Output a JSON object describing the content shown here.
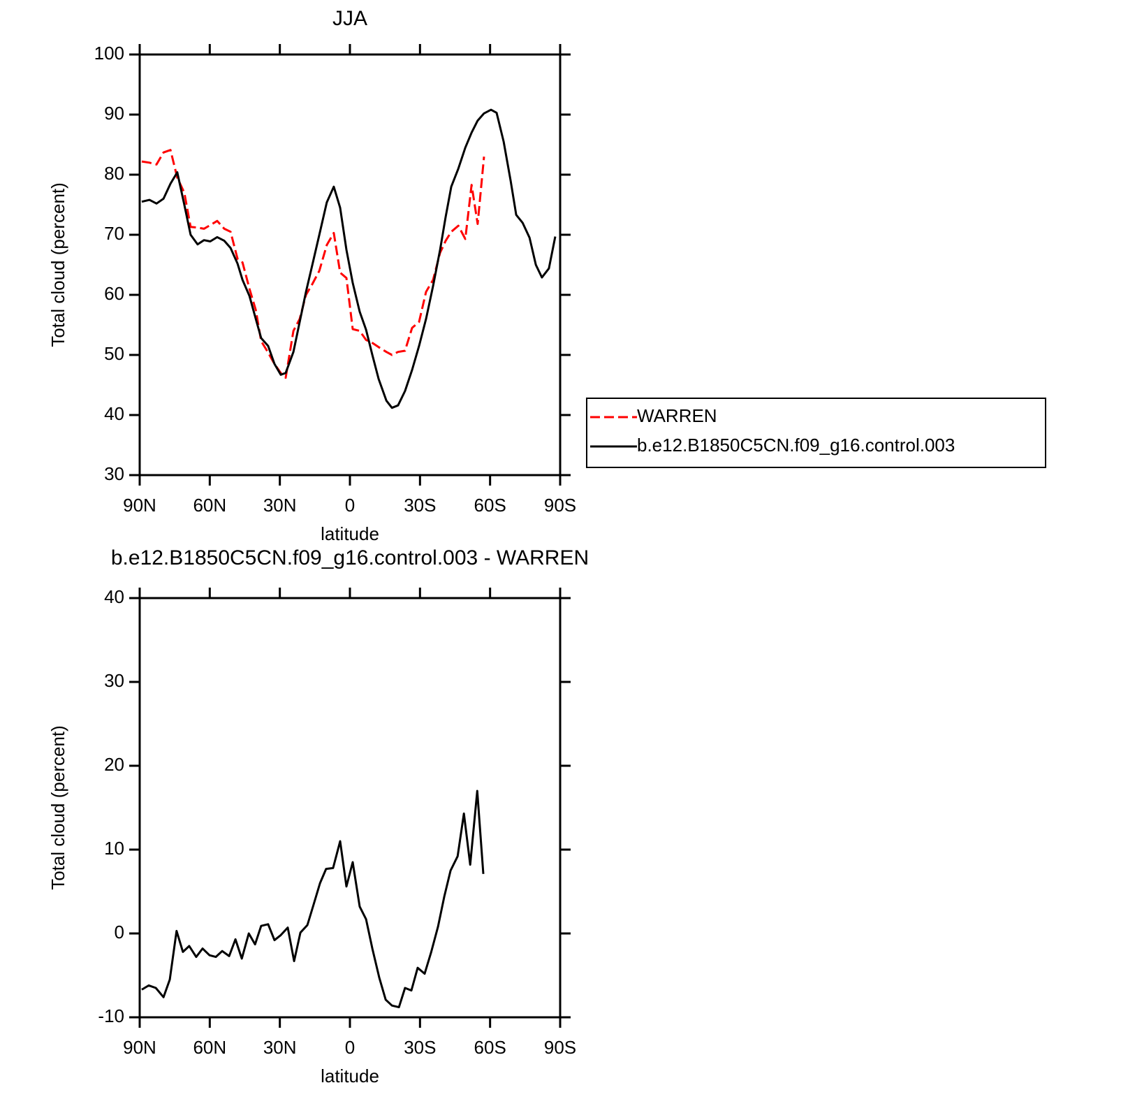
{
  "chart_data": [
    {
      "type": "line",
      "title": "JJA",
      "xlabel": "latitude",
      "ylabel": "Total cloud (percent)",
      "xlim": [
        90,
        -90
      ],
      "ylim": [
        30,
        100
      ],
      "xticks": [
        {
          "value": 90,
          "label": "90N"
        },
        {
          "value": 60,
          "label": "60N"
        },
        {
          "value": 30,
          "label": "30N"
        },
        0,
        {
          "value": -30,
          "label": "30S"
        },
        {
          "value": -60,
          "label": "60S"
        },
        {
          "value": -90,
          "label": "90S"
        }
      ],
      "yticks": [
        30,
        40,
        50,
        60,
        70,
        80,
        90,
        100
      ],
      "legend": "right",
      "x": [
        89.1,
        85.8,
        82.8,
        79.8,
        76.8,
        73.9,
        70.9,
        68.2,
        65.2,
        62.5,
        59.8,
        56.8,
        53.8,
        51.1,
        48.1,
        46.0,
        43.0,
        40.3,
        38.0,
        35.0,
        32.3,
        29.6,
        27.5,
        24.2,
        21.5,
        18.8,
        16.1,
        13.1,
        9.9,
        6.9,
        4.2,
        1.5,
        -1.2,
        -4.2,
        -6.9,
        -9.6,
        -12.3,
        -15.6,
        -18.0,
        -20.6,
        -23.6,
        -26.6,
        -29.6,
        -32.6,
        -35.6,
        -38.6,
        -41.0,
        -43.4,
        -46.4,
        -49.4,
        -52.1,
        -54.7,
        -57.4,
        -60.4,
        -62.8,
        -65.8,
        -68.8,
        -71.2,
        -73.9,
        -76.9,
        -79.6,
        -82.2,
        -85.2,
        -87.9
      ],
      "series": [
        {
          "name": "WARREN",
          "color": "#ff0000",
          "style": "dashed",
          "values": [
            82.2,
            82,
            81.7,
            83.7,
            84.1,
            79.5,
            77,
            71.3,
            71.2,
            71,
            71.6,
            72.3,
            71,
            70.5,
            66,
            65.4,
            61,
            57.5,
            52.3,
            50.4,
            48.5,
            47,
            46.2,
            54,
            56,
            60,
            61.8,
            64,
            68.3,
            70.3,
            63.7,
            62.8,
            54.3,
            54,
            52.5,
            52,
            51.3,
            50.5,
            50,
            50.5,
            50.7,
            54.5,
            55.5,
            60.5,
            62.5,
            67,
            69,
            70.5,
            71.5,
            69.3,
            78.3,
            71.8,
            83,
            null,
            null,
            null,
            null,
            null,
            null,
            null,
            null,
            null,
            null,
            null
          ]
        },
        {
          "name": "b.e12.B1850C5CN.f09_g16.control.003",
          "color": "#000000",
          "style": "solid",
          "values": [
            75.5,
            75.8,
            75.2,
            76,
            78.5,
            80.4,
            75,
            70,
            68.4,
            69.1,
            68.9,
            69.6,
            69,
            67.8,
            65.2,
            62.5,
            59.8,
            56,
            52.8,
            51.5,
            48.5,
            46.7,
            47,
            50.5,
            55.5,
            60.5,
            65,
            70,
            75.4,
            78,
            74.5,
            67.5,
            62,
            57.2,
            54.2,
            50,
            46,
            42.4,
            41.2,
            41.6,
            44,
            47.5,
            51.5,
            56,
            61.5,
            67.5,
            73,
            78,
            81,
            84.5,
            87,
            89,
            90.2,
            90.8,
            90.3,
            85.5,
            79,
            73.3,
            72,
            69.5,
            65,
            62.9,
            64.4,
            69.7
          ]
        }
      ]
    },
    {
      "type": "line",
      "title": "b.e12.B1850C5CN.f09_g16.control.003 - WARREN",
      "xlabel": "latitude",
      "ylabel": "Total cloud (percent)",
      "xlim": [
        90,
        -90
      ],
      "ylim": [
        -10,
        40
      ],
      "xticks": [
        {
          "value": 90,
          "label": "90N"
        },
        {
          "value": 60,
          "label": "60N"
        },
        {
          "value": 30,
          "label": "30N"
        },
        0,
        {
          "value": -30,
          "label": "30S"
        },
        {
          "value": -60,
          "label": "60S"
        },
        {
          "value": -90,
          "label": "90S"
        }
      ],
      "yticks": [
        -10,
        0,
        10,
        20,
        30,
        40
      ],
      "x": [
        89.1,
        86.1,
        83.1,
        79.8,
        77.1,
        74.2,
        71.5,
        68.8,
        65.8,
        63.1,
        60.1,
        57.4,
        54.7,
        51.7,
        49.0,
        46.3,
        43.3,
        40.6,
        38.0,
        35.0,
        32.3,
        29.6,
        26.6,
        23.9,
        21.2,
        18.2,
        15.5,
        12.8,
        10.2,
        7.2,
        4.2,
        1.5,
        -1.2,
        -4.2,
        -6.9,
        -9.6,
        -12.6,
        -15.3,
        -18.0,
        -21.0,
        -23.6,
        -26.3,
        -29.0,
        -32.0,
        -34.7,
        -37.7,
        -40.4,
        -43.1,
        -46.1,
        -48.8,
        -51.5,
        -54.5,
        -57.1
      ],
      "color": "#000000",
      "values": [
        -6.7,
        -6.2,
        -6.5,
        -7.6,
        -5.5,
        0.3,
        -2.2,
        -1.5,
        -2.8,
        -1.8,
        -2.6,
        -2.8,
        -2.1,
        -2.7,
        -0.7,
        -3,
        0,
        -1.3,
        0.9,
        1.1,
        -0.8,
        -0.2,
        0.7,
        -3.3,
        0.1,
        1,
        3.5,
        6,
        7.7,
        7.8,
        11,
        5.6,
        8.5,
        3.2,
        1.7,
        -1.8,
        -5.3,
        -7.9,
        -8.6,
        -8.8,
        -6.5,
        -6.8,
        -4.1,
        -4.8,
        -2.3,
        0.8,
        4.4,
        7.5,
        9.2,
        14.3,
        8.2,
        17,
        7.1
      ]
    }
  ]
}
